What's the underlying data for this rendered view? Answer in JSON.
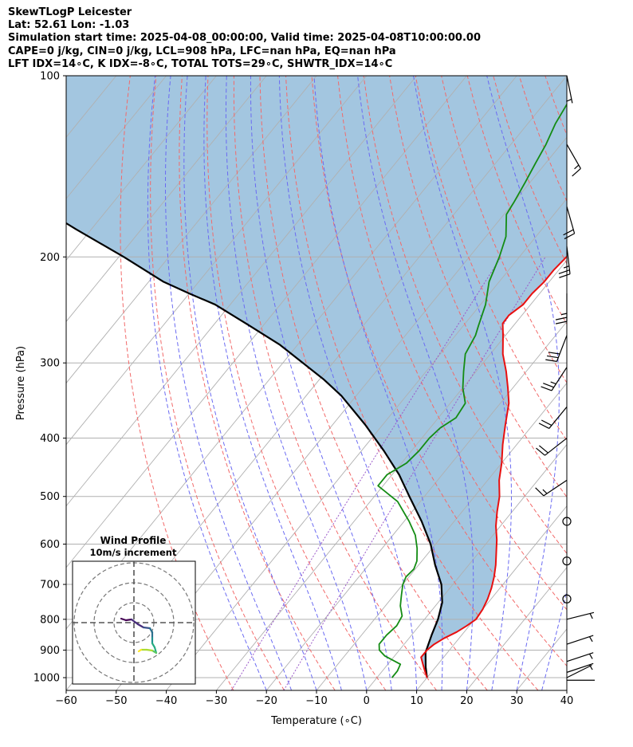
{
  "header": {
    "line1": "SkewTLogP Leicester",
    "line2": "Lat: 52.61   Lon: -1.03",
    "line3": "Simulation start time: 2025-04-08_00:00:00, Valid time: 2025-04-08T10:00:00.00",
    "line4": "CAPE=0 j/kg, CIN=0 j/kg, LCL=908 hPa, LFC=nan hPa, EQ=nan hPa",
    "line5": "LFT IDX=14∘C, K IDX=-8∘C, TOTAL TOTS=29∘C, SHWTR_IDX=14∘C"
  },
  "chart_data": {
    "type": "line",
    "subtype": "skew-t log-p",
    "xlabel": "Temperature (∘C)",
    "ylabel": "Pressure (hPa)",
    "xlim": [
      -60,
      40
    ],
    "ylim": [
      1050,
      100
    ],
    "y_scale": "log",
    "x_ticks": [
      "−60",
      "−50",
      "−40",
      "−30",
      "−20",
      "−10",
      "0",
      "10",
      "20",
      "30",
      "40"
    ],
    "y_ticks": [
      1000,
      900,
      800,
      700,
      600,
      500,
      400,
      300,
      200,
      100
    ],
    "grid": true,
    "colors": {
      "temperature": "#e81010",
      "dewpoint": "#148c14",
      "parcel": "#000000",
      "shade": "#a3c6e0",
      "dry_adiabat": "#f26a6a",
      "moist_adiabat": "#6b6bf2",
      "mixing_ratio": "#9b59c9",
      "isotherm": "#b0b0b0"
    },
    "series": [
      {
        "role": "temperature",
        "points": [
          [
            10,
            1000
          ],
          [
            8.5,
            975
          ],
          [
            7,
            950
          ],
          [
            5.5,
            925
          ],
          [
            5.5,
            900
          ],
          [
            6,
            880
          ],
          [
            7,
            860
          ],
          [
            8.5,
            840
          ],
          [
            9.5,
            820
          ],
          [
            10.3,
            800
          ],
          [
            10,
            770
          ],
          [
            9.3,
            740
          ],
          [
            8.3,
            710
          ],
          [
            7,
            680
          ],
          [
            5.4,
            650
          ],
          [
            3.5,
            620
          ],
          [
            1.5,
            590
          ],
          [
            -0.9,
            560
          ],
          [
            -3,
            530
          ],
          [
            -5,
            500
          ],
          [
            -7.7,
            470
          ],
          [
            -10,
            440
          ],
          [
            -12.8,
            410
          ],
          [
            -15.5,
            380
          ],
          [
            -18.3,
            350
          ],
          [
            -21,
            330
          ],
          [
            -24,
            310
          ],
          [
            -27.5,
            290
          ],
          [
            -30.5,
            270
          ],
          [
            -32.5,
            258
          ],
          [
            -32.6,
            250
          ],
          [
            -31.5,
            240
          ],
          [
            -31.5,
            230
          ],
          [
            -31,
            220
          ],
          [
            -31,
            210
          ],
          [
            -30.6,
            200
          ],
          [
            -30.9,
            190
          ],
          [
            -31.4,
            180
          ],
          [
            -32.4,
            170
          ],
          [
            -33.5,
            160
          ],
          [
            -34.5,
            150
          ],
          [
            -35.4,
            140
          ],
          [
            -36.7,
            130
          ],
          [
            -38.4,
            120
          ],
          [
            -39.7,
            110
          ],
          [
            -41,
            100
          ]
        ]
      },
      {
        "role": "dewpoint",
        "points": [
          [
            3,
            1000
          ],
          [
            3,
            975
          ],
          [
            2.5,
            950
          ],
          [
            -2,
            920
          ],
          [
            -4,
            900
          ],
          [
            -5,
            880
          ],
          [
            -5,
            850
          ],
          [
            -4.5,
            820
          ],
          [
            -5,
            790
          ],
          [
            -7,
            760
          ],
          [
            -8.5,
            730
          ],
          [
            -10,
            700
          ],
          [
            -10.6,
            680
          ],
          [
            -10.3,
            660
          ],
          [
            -11,
            640
          ],
          [
            -13,
            610
          ],
          [
            -15.5,
            580
          ],
          [
            -19,
            550
          ],
          [
            -24.5,
            510
          ],
          [
            -31,
            480
          ],
          [
            -31,
            460
          ],
          [
            -29,
            440
          ],
          [
            -28.5,
            420
          ],
          [
            -28.5,
            400
          ],
          [
            -28,
            385
          ],
          [
            -26.5,
            370
          ],
          [
            -27,
            350
          ],
          [
            -30,
            330
          ],
          [
            -32.5,
            310
          ],
          [
            -35,
            290
          ],
          [
            -36,
            270
          ],
          [
            -37,
            260
          ],
          [
            -39,
            240
          ],
          [
            -42,
            220
          ],
          [
            -44,
            200
          ],
          [
            -46,
            185
          ],
          [
            -49.5,
            170
          ],
          [
            -50,
            162
          ],
          [
            -51,
            150
          ],
          [
            -52,
            140
          ],
          [
            -53,
            130
          ],
          [
            -54.5,
            120
          ],
          [
            -55.5,
            110
          ],
          [
            -56.5,
            100
          ]
        ]
      },
      {
        "role": "parcel",
        "points": [
          [
            10,
            1000
          ],
          [
            8,
            960
          ],
          [
            5.6,
            908
          ],
          [
            4,
            850
          ],
          [
            2.7,
            800
          ],
          [
            0.8,
            750
          ],
          [
            -2.3,
            700
          ],
          [
            -6.7,
            650
          ],
          [
            -11,
            600
          ],
          [
            -16.5,
            550
          ],
          [
            -23,
            500
          ],
          [
            -28.6,
            460
          ],
          [
            -35.5,
            420
          ],
          [
            -43.5,
            380
          ],
          [
            -53,
            340
          ],
          [
            -59,
            320
          ],
          [
            -66,
            300
          ],
          [
            -73.5,
            280
          ],
          [
            -82.8,
            260
          ],
          [
            -93,
            240
          ],
          [
            -100,
            230
          ],
          [
            -107,
            220
          ],
          [
            -119,
            200
          ],
          [
            -133,
            180
          ],
          [
            -148,
            160
          ],
          [
            -160,
            146
          ],
          [
            -180,
            130
          ],
          [
            -200,
            116
          ],
          [
            -216,
            107
          ],
          [
            -228,
            100
          ]
        ]
      }
    ],
    "wind_barbs": [
      {
        "p": 100,
        "u": -1,
        "v": 5
      },
      {
        "p": 130,
        "u": -8,
        "v": 14
      },
      {
        "p": 165,
        "u": -6,
        "v": 21
      },
      {
        "p": 192,
        "u": -3,
        "v": 26
      },
      {
        "p": 230,
        "u": 0,
        "v": 26
      },
      {
        "p": 270,
        "u": 10,
        "v": 26
      },
      {
        "p": 305,
        "u": 13,
        "v": 20
      },
      {
        "p": 355,
        "u": 14,
        "v": 17
      },
      {
        "p": 400,
        "u": 14,
        "v": 11
      },
      {
        "p": 470,
        "u": 12,
        "v": 8
      },
      {
        "p": 550,
        "calm": true
      },
      {
        "p": 640,
        "calm": true
      },
      {
        "p": 740,
        "calm": true
      },
      {
        "p": 800,
        "u": -4,
        "v": -1
      },
      {
        "p": 880,
        "u": -3,
        "v": -1
      },
      {
        "p": 940,
        "u": -3,
        "v": -1
      },
      {
        "p": 980,
        "u": -3,
        "v": -1
      },
      {
        "p": 1000,
        "u": -2,
        "v": -1
      },
      {
        "p": 1010,
        "u": -2,
        "v": 0
      }
    ],
    "inset": {
      "title": "Wind Profile",
      "subtitle": "10m/s increment",
      "rings": [
        10,
        20,
        30
      ],
      "hodograph": [
        [
          -1.6,
          0.5
        ],
        [
          -1,
          0.3
        ],
        [
          -0.3,
          0.4
        ],
        [
          0.5,
          -0.2
        ],
        [
          1.2,
          -0.6
        ],
        [
          2,
          -0.7
        ],
        [
          2.3,
          -1.2
        ],
        [
          2.3,
          -1.9
        ],
        [
          2.3,
          -2.6
        ],
        [
          2.6,
          -3.1
        ],
        [
          2.8,
          -3.8
        ],
        [
          2.3,
          -3.5
        ],
        [
          1.6,
          -3.4
        ],
        [
          0.9,
          -3.4
        ],
        [
          0.6,
          -3.6
        ]
      ]
    }
  }
}
